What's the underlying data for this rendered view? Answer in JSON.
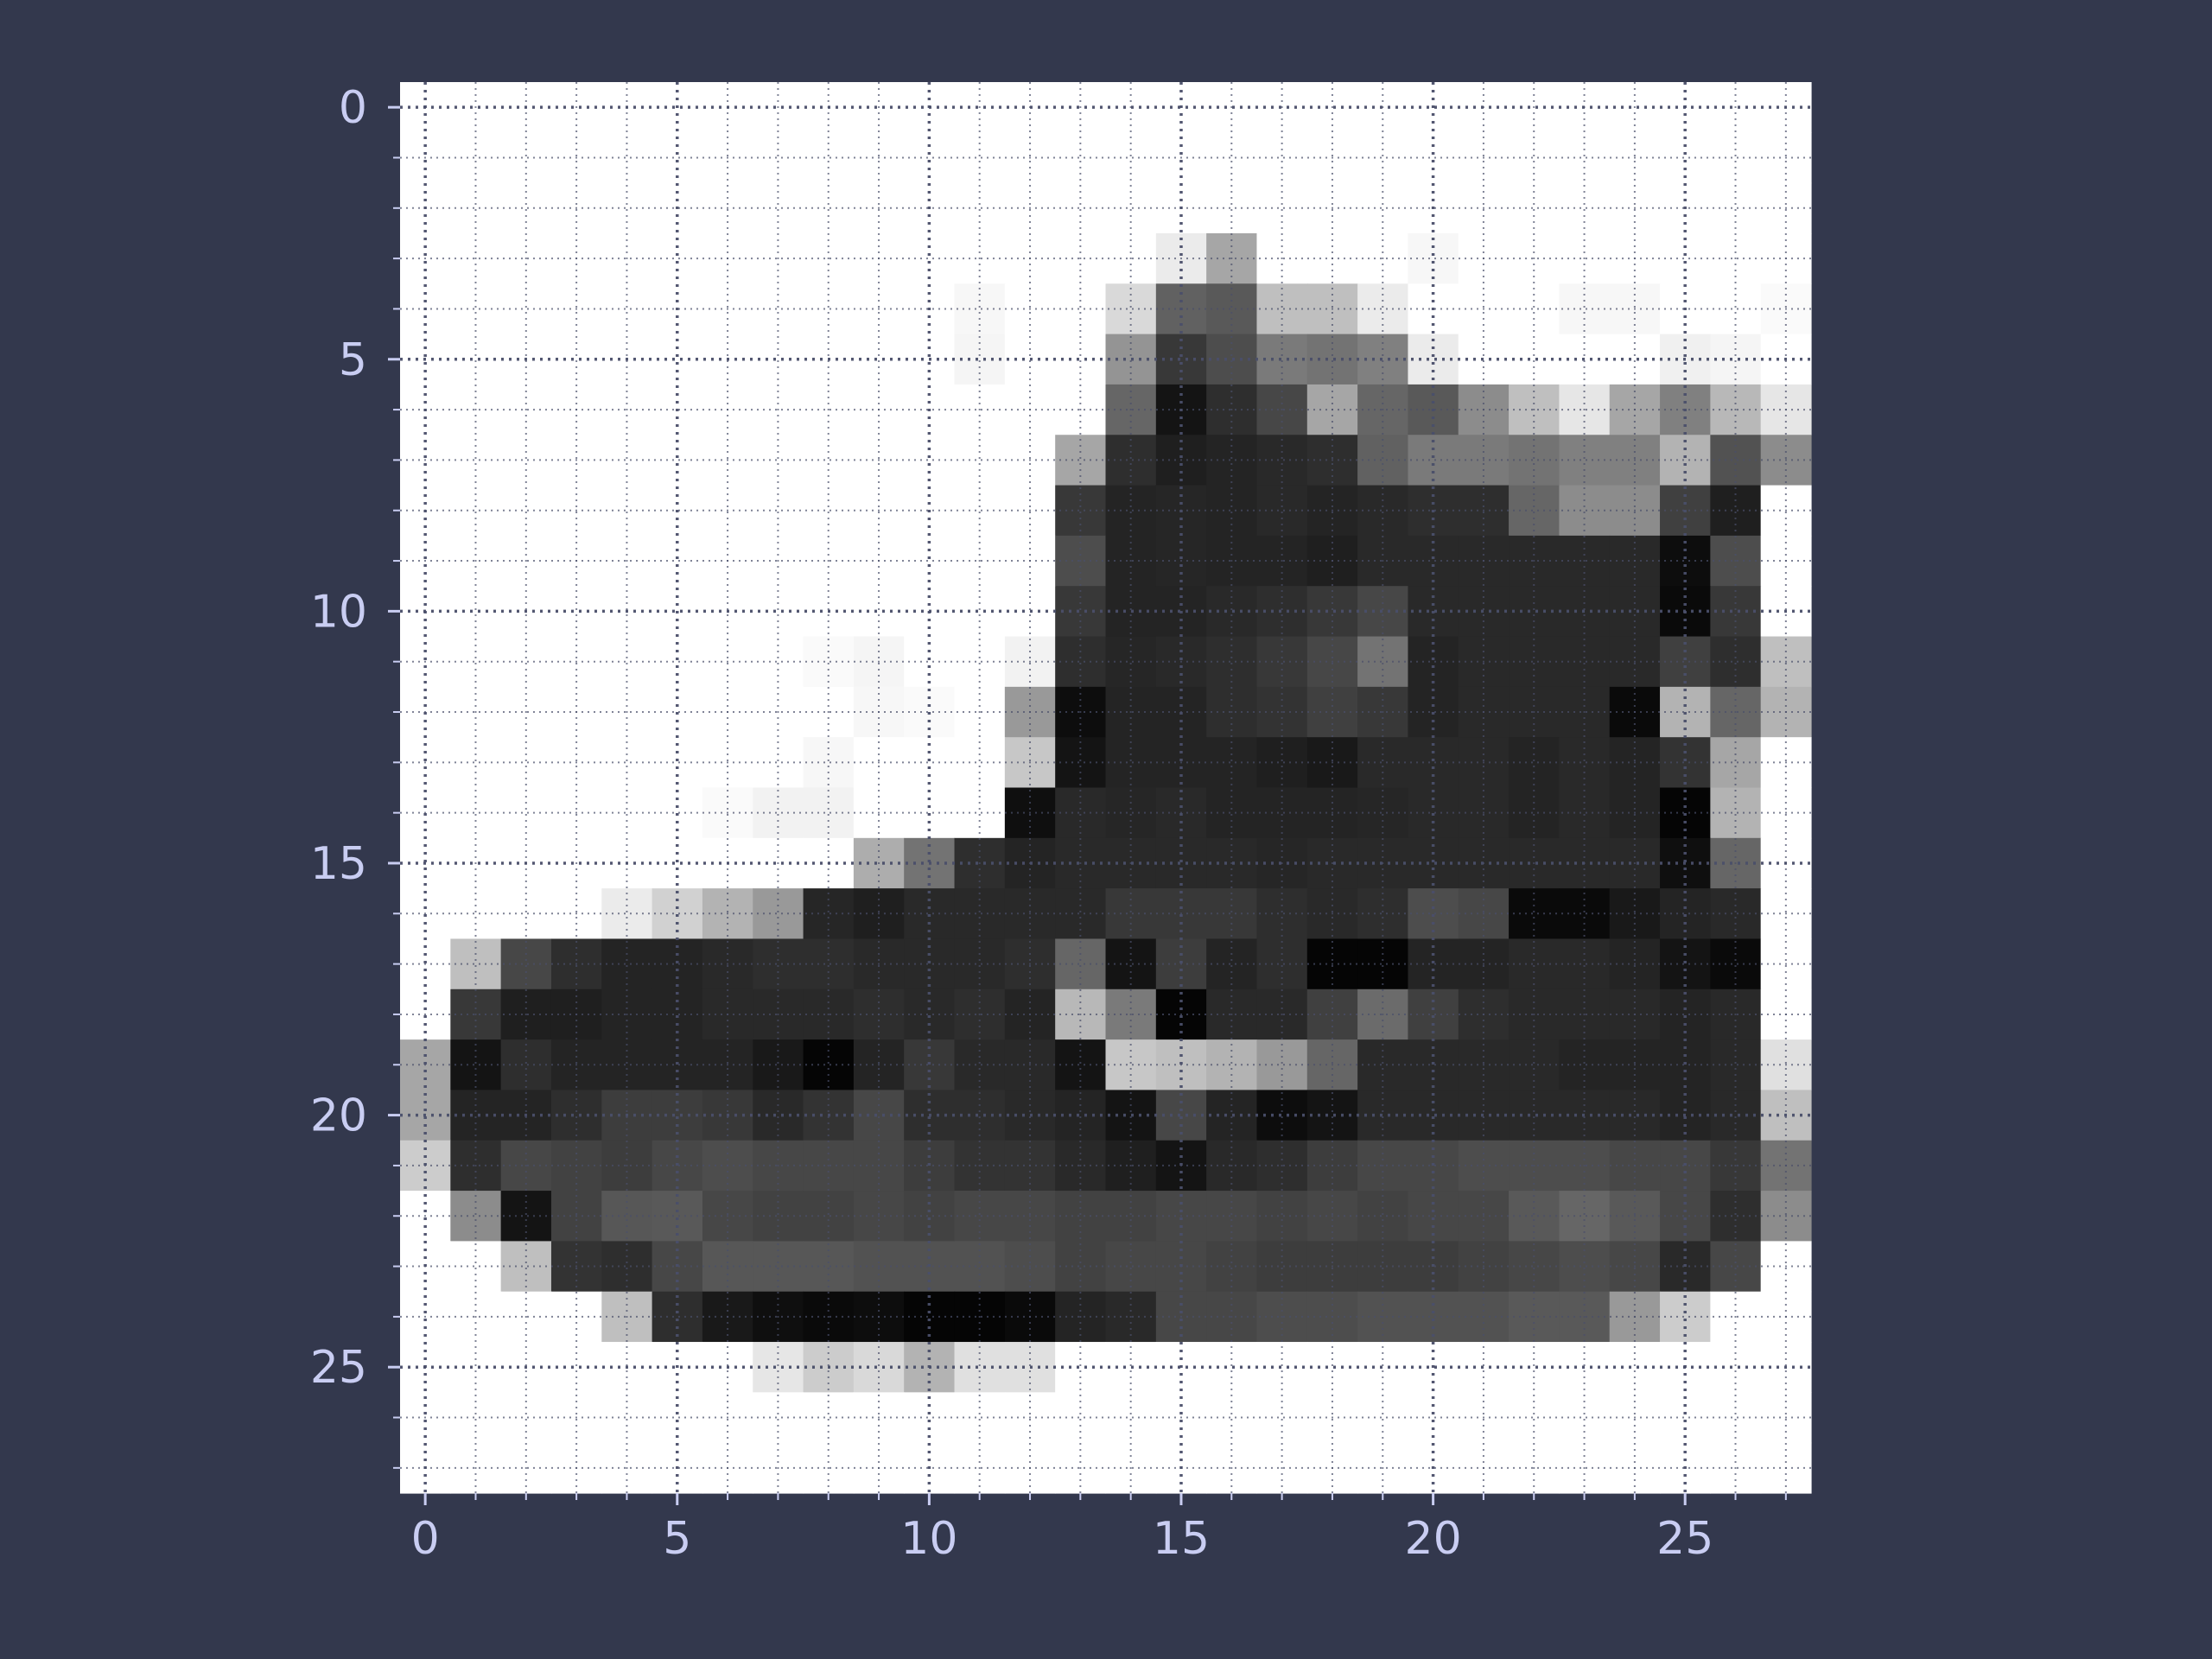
{
  "colors": {
    "background": "#33384d",
    "tick_text": "#c9cdf2",
    "grid": "#4a4f6a",
    "plot_frame": "#ffffff"
  },
  "chart_data": {
    "type": "heatmap",
    "colormap": "gray_r",
    "rows": 28,
    "cols": 28,
    "xlim": [
      -0.5,
      27.5
    ],
    "ylim": [
      27.5,
      -0.5
    ],
    "x_ticks": [
      0,
      5,
      10,
      15,
      20,
      25
    ],
    "y_ticks": [
      0,
      5,
      10,
      15,
      20,
      25
    ],
    "x_tick_labels": [
      "0",
      "5",
      "10",
      "15",
      "20",
      "25"
    ],
    "y_tick_labels": [
      "0",
      "5",
      "10",
      "15",
      "20",
      "25"
    ],
    "grid": {
      "major": true,
      "minor": true,
      "style": "dotted"
    },
    "title": "",
    "xlabel": "",
    "ylabel": "",
    "z": [
      [
        0,
        0,
        0,
        0,
        0,
        0,
        0,
        0,
        0,
        0,
        0,
        0,
        0,
        0,
        0,
        0,
        0,
        0,
        0,
        0,
        0,
        0,
        0,
        0,
        0,
        0,
        0,
        0
      ],
      [
        0,
        0,
        0,
        0,
        0,
        0,
        0,
        0,
        0,
        0,
        0,
        0,
        0,
        0,
        0,
        0,
        0,
        0,
        0,
        0,
        0,
        0,
        0,
        0,
        0,
        0,
        0,
        0
      ],
      [
        0,
        0,
        0,
        0,
        0,
        0,
        0,
        0,
        0,
        0,
        0,
        0,
        0,
        0,
        0,
        0,
        0,
        0,
        0,
        0,
        0,
        0,
        0,
        0,
        0,
        0,
        0,
        0
      ],
      [
        0,
        0,
        0,
        0,
        0,
        0,
        0,
        0,
        0,
        0,
        0,
        0,
        0,
        0,
        0,
        0.08,
        0.35,
        0,
        0,
        0,
        0.03,
        0,
        0,
        0,
        0,
        0,
        0,
        0
      ],
      [
        0,
        0,
        0,
        0,
        0,
        0,
        0,
        0,
        0,
        0,
        0,
        0.03,
        0,
        0,
        0.15,
        0.62,
        0.65,
        0.25,
        0.25,
        0.08,
        0,
        0,
        0,
        0.03,
        0.03,
        0,
        0,
        0.02
      ],
      [
        0,
        0,
        0,
        0,
        0,
        0,
        0,
        0,
        0,
        0,
        0,
        0.04,
        0,
        0,
        0.42,
        0.78,
        0.7,
        0.52,
        0.55,
        0.5,
        0.08,
        0,
        0,
        0,
        0,
        0.06,
        0.04,
        0
      ],
      [
        0,
        0,
        0,
        0,
        0,
        0,
        0,
        0,
        0,
        0,
        0,
        0,
        0,
        0,
        0.6,
        0.92,
        0.82,
        0.72,
        0.35,
        0.6,
        0.65,
        0.45,
        0.25,
        0.1,
        0.35,
        0.5,
        0.28,
        0.1
      ],
      [
        0,
        0,
        0,
        0,
        0,
        0,
        0,
        0,
        0,
        0,
        0,
        0,
        0,
        0.35,
        0.82,
        0.88,
        0.86,
        0.84,
        0.82,
        0.62,
        0.52,
        0.52,
        0.55,
        0.5,
        0.5,
        0.3,
        0.68,
        0.45
      ],
      [
        0,
        0,
        0,
        0,
        0,
        0,
        0,
        0,
        0,
        0,
        0,
        0,
        0,
        0.78,
        0.86,
        0.85,
        0.86,
        0.84,
        0.86,
        0.84,
        0.82,
        0.82,
        0.6,
        0.45,
        0.45,
        0.75,
        0.88,
        0
      ],
      [
        0,
        0,
        0,
        0,
        0,
        0,
        0,
        0,
        0,
        0,
        0,
        0,
        0,
        0.7,
        0.86,
        0.85,
        0.86,
        0.86,
        0.88,
        0.84,
        0.84,
        0.84,
        0.84,
        0.84,
        0.84,
        0.95,
        0.7,
        0
      ],
      [
        0,
        0,
        0,
        0,
        0,
        0,
        0,
        0,
        0,
        0,
        0,
        0,
        0,
        0.78,
        0.86,
        0.86,
        0.84,
        0.82,
        0.78,
        0.72,
        0.84,
        0.84,
        0.84,
        0.84,
        0.84,
        0.96,
        0.78,
        0
      ],
      [
        0,
        0,
        0,
        0,
        0,
        0,
        0,
        0,
        0.02,
        0.04,
        0,
        0,
        0.05,
        0.82,
        0.85,
        0.84,
        0.82,
        0.78,
        0.72,
        0.55,
        0.86,
        0.84,
        0.84,
        0.84,
        0.84,
        0.75,
        0.82,
        0.25
      ],
      [
        0,
        0,
        0,
        0,
        0,
        0,
        0,
        0,
        0,
        0.03,
        0.02,
        0,
        0.4,
        0.95,
        0.86,
        0.86,
        0.82,
        0.8,
        0.75,
        0.78,
        0.86,
        0.84,
        0.84,
        0.84,
        0.96,
        0.3,
        0.6,
        0.3
      ],
      [
        0,
        0,
        0,
        0,
        0,
        0,
        0,
        0,
        0.03,
        0,
        0,
        0,
        0.22,
        0.92,
        0.86,
        0.86,
        0.86,
        0.88,
        0.9,
        0.84,
        0.84,
        0.84,
        0.86,
        0.84,
        0.86,
        0.8,
        0.35,
        0
      ],
      [
        0,
        0,
        0,
        0,
        0,
        0,
        0.02,
        0.05,
        0.05,
        0,
        0,
        0,
        0.94,
        0.84,
        0.85,
        0.84,
        0.86,
        0.86,
        0.86,
        0.85,
        0.84,
        0.84,
        0.86,
        0.84,
        0.86,
        0.98,
        0.3,
        0
      ],
      [
        0,
        0,
        0,
        0,
        0,
        0,
        0,
        0,
        0,
        0.32,
        0.55,
        0.82,
        0.86,
        0.84,
        0.84,
        0.84,
        0.84,
        0.85,
        0.84,
        0.84,
        0.84,
        0.84,
        0.84,
        0.84,
        0.84,
        0.94,
        0.6,
        0
      ],
      [
        0,
        0,
        0,
        0,
        0.08,
        0.18,
        0.3,
        0.4,
        0.85,
        0.88,
        0.84,
        0.84,
        0.84,
        0.84,
        0.78,
        0.78,
        0.78,
        0.82,
        0.84,
        0.82,
        0.7,
        0.72,
        0.96,
        0.96,
        0.9,
        0.86,
        0.84,
        0
      ],
      [
        0,
        0.25,
        0.72,
        0.82,
        0.86,
        0.86,
        0.84,
        0.82,
        0.82,
        0.84,
        0.84,
        0.84,
        0.82,
        0.6,
        0.92,
        0.76,
        0.86,
        0.82,
        0.98,
        0.98,
        0.86,
        0.86,
        0.84,
        0.84,
        0.86,
        0.92,
        0.96,
        0
      ],
      [
        0,
        0.78,
        0.88,
        0.88,
        0.86,
        0.86,
        0.84,
        0.84,
        0.84,
        0.82,
        0.84,
        0.82,
        0.86,
        0.28,
        0.52,
        0.98,
        0.84,
        0.84,
        0.75,
        0.58,
        0.75,
        0.82,
        0.84,
        0.84,
        0.84,
        0.86,
        0.84,
        0
      ],
      [
        0.35,
        0.92,
        0.82,
        0.86,
        0.86,
        0.86,
        0.86,
        0.9,
        0.98,
        0.86,
        0.78,
        0.84,
        0.84,
        0.92,
        0.22,
        0.25,
        0.3,
        0.4,
        0.6,
        0.84,
        0.84,
        0.84,
        0.84,
        0.86,
        0.86,
        0.86,
        0.84,
        0.12
      ],
      [
        0.35,
        0.86,
        0.86,
        0.82,
        0.76,
        0.76,
        0.78,
        0.84,
        0.8,
        0.72,
        0.82,
        0.82,
        0.84,
        0.86,
        0.92,
        0.72,
        0.86,
        0.95,
        0.92,
        0.84,
        0.84,
        0.84,
        0.84,
        0.84,
        0.84,
        0.86,
        0.84,
        0.25
      ],
      [
        0.2,
        0.82,
        0.72,
        0.74,
        0.76,
        0.72,
        0.7,
        0.72,
        0.72,
        0.72,
        0.76,
        0.8,
        0.8,
        0.84,
        0.88,
        0.92,
        0.84,
        0.82,
        0.76,
        0.72,
        0.72,
        0.7,
        0.7,
        0.7,
        0.72,
        0.72,
        0.78,
        0.55
      ],
      [
        0,
        0.45,
        0.92,
        0.74,
        0.66,
        0.65,
        0.72,
        0.74,
        0.74,
        0.72,
        0.74,
        0.72,
        0.72,
        0.74,
        0.74,
        0.72,
        0.72,
        0.74,
        0.72,
        0.74,
        0.72,
        0.72,
        0.65,
        0.6,
        0.65,
        0.72,
        0.82,
        0.45
      ],
      [
        0,
        0,
        0.25,
        0.8,
        0.82,
        0.72,
        0.66,
        0.66,
        0.66,
        0.68,
        0.68,
        0.68,
        0.7,
        0.74,
        0.72,
        0.72,
        0.74,
        0.76,
        0.76,
        0.76,
        0.76,
        0.74,
        0.72,
        0.7,
        0.72,
        0.84,
        0.72,
        0
      ],
      [
        0,
        0,
        0,
        0,
        0.25,
        0.82,
        0.9,
        0.94,
        0.96,
        0.95,
        0.98,
        0.98,
        0.96,
        0.86,
        0.84,
        0.72,
        0.72,
        0.7,
        0.7,
        0.68,
        0.68,
        0.68,
        0.65,
        0.65,
        0.4,
        0.2,
        0,
        0
      ],
      [
        0,
        0,
        0,
        0,
        0,
        0,
        0,
        0.1,
        0.2,
        0.15,
        0.3,
        0.12,
        0.12,
        0,
        0,
        0,
        0,
        0,
        0,
        0,
        0,
        0,
        0,
        0,
        0,
        0,
        0,
        0
      ],
      [
        0,
        0,
        0,
        0,
        0,
        0,
        0,
        0,
        0,
        0,
        0,
        0,
        0,
        0,
        0,
        0,
        0,
        0,
        0,
        0,
        0,
        0,
        0,
        0,
        0,
        0,
        0,
        0
      ],
      [
        0,
        0,
        0,
        0,
        0,
        0,
        0,
        0,
        0,
        0,
        0,
        0,
        0,
        0,
        0,
        0,
        0,
        0,
        0,
        0,
        0,
        0,
        0,
        0,
        0,
        0,
        0,
        0
      ]
    ]
  }
}
